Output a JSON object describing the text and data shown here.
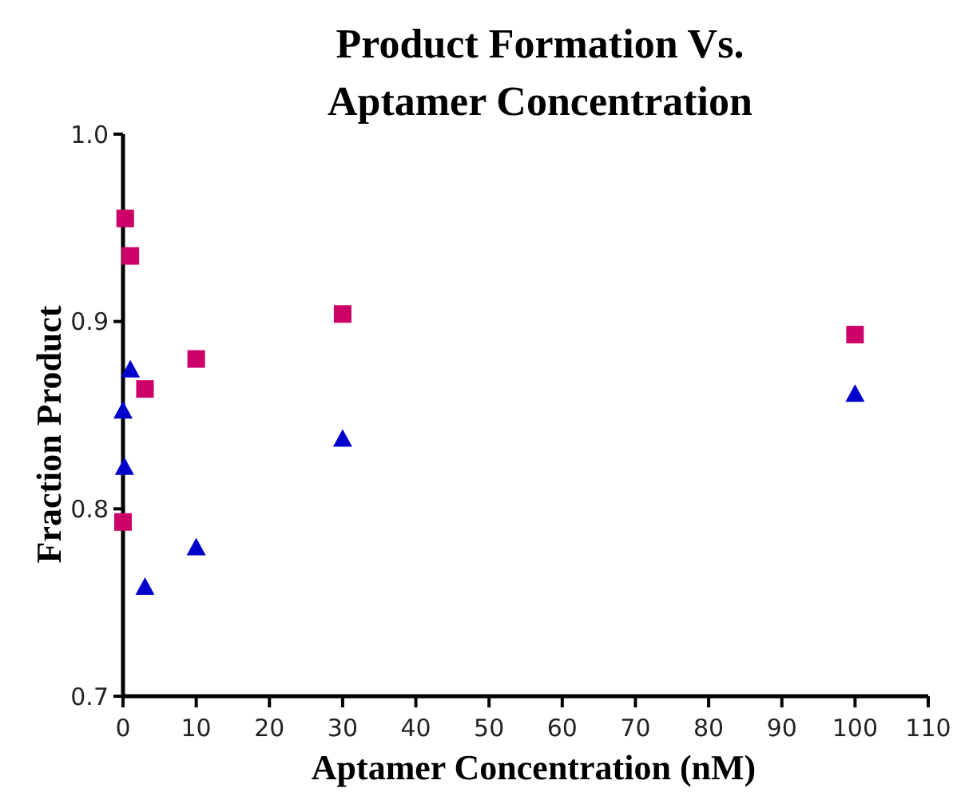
{
  "chart_data": {
    "type": "scatter",
    "title": "Product Formation Vs. Aptamer Concentration",
    "xlabel": "Aptamer Concentration (nM)",
    "ylabel": "Fraction Product",
    "xlim": [
      0,
      110
    ],
    "xticks": [
      0,
      10,
      20,
      30,
      40,
      50,
      60,
      70,
      80,
      90,
      100,
      110
    ],
    "ylim": [
      0.7,
      1.0
    ],
    "yticks": [
      0.7,
      0.8,
      0.9,
      {
        "value": 1.0,
        "label": "1.0"
      }
    ],
    "grid": false,
    "series": [
      {
        "color": "#cc0066",
        "marker": "square",
        "x": [
          0,
          0.3,
          1,
          3,
          10,
          30,
          100
        ],
        "values": [
          0.793,
          0.955,
          0.935,
          0.864,
          0.88,
          0.904,
          0.893
        ]
      },
      {
        "color": "#0000cc",
        "marker": "triangle",
        "x": [
          0,
          0.2,
          1,
          3,
          10,
          30,
          100
        ],
        "values": [
          0.852,
          0.822,
          0.874,
          0.758,
          0.779,
          0.837,
          0.861
        ]
      }
    ]
  }
}
